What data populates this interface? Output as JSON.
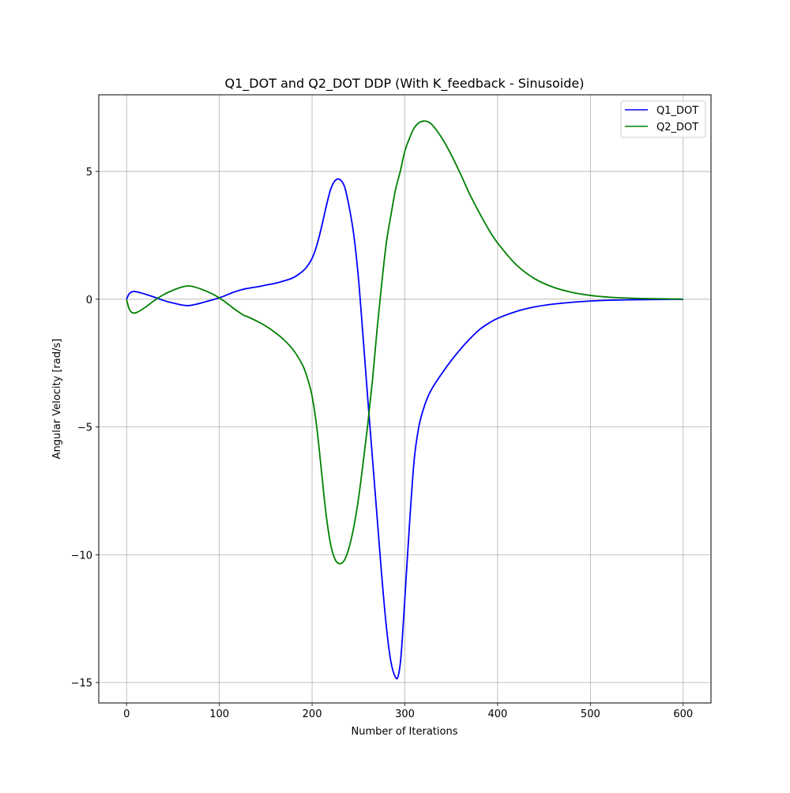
{
  "chart_data": {
    "type": "line",
    "title": "Q1_DOT and Q2_DOT DDP (With K_feedback - Sinusoide)",
    "xlabel": "Number of Iterations",
    "ylabel": "Angular Velocity [rad/s]",
    "xlim": [
      -30,
      630
    ],
    "ylim": [
      -15.8,
      8.0
    ],
    "xticks": [
      0,
      100,
      200,
      300,
      400,
      500,
      600
    ],
    "xtick_labels": [
      "0",
      "100",
      "200",
      "300",
      "400",
      "500",
      "600"
    ],
    "yticks": [
      5,
      0,
      -5,
      -10,
      -15
    ],
    "ytick_labels": [
      "5",
      "0",
      "−5",
      "−10",
      "−15"
    ],
    "grid": true,
    "legend_position": "top-right",
    "series": [
      {
        "name": "Q1_DOT",
        "color": "#0000ff",
        "x": [
          0,
          3,
          7,
          12,
          20,
          30,
          40,
          50,
          60,
          67,
          75,
          85,
          95,
          105,
          115,
          125,
          130,
          140,
          150,
          160,
          170,
          180,
          190,
          195,
          200,
          205,
          210,
          215,
          220,
          225,
          230,
          235,
          240,
          245,
          250,
          255,
          260,
          265,
          270,
          275,
          280,
          285,
          290,
          293,
          296,
          300,
          305,
          310,
          315,
          320,
          325,
          330,
          340,
          350,
          360,
          370,
          380,
          390,
          400,
          420,
          440,
          460,
          480,
          500,
          520,
          540,
          560,
          580,
          600
        ],
        "y": [
          0.0,
          0.22,
          0.3,
          0.28,
          0.2,
          0.08,
          -0.05,
          -0.15,
          -0.23,
          -0.25,
          -0.2,
          -0.1,
          0.0,
          0.12,
          0.27,
          0.38,
          0.42,
          0.48,
          0.55,
          0.62,
          0.72,
          0.85,
          1.1,
          1.3,
          1.6,
          2.1,
          2.8,
          3.6,
          4.3,
          4.65,
          4.68,
          4.4,
          3.6,
          2.5,
          0.8,
          -1.5,
          -3.9,
          -6.2,
          -8.5,
          -10.8,
          -12.8,
          -14.2,
          -14.8,
          -14.72,
          -13.9,
          -11.7,
          -8.8,
          -6.3,
          -5.0,
          -4.3,
          -3.8,
          -3.45,
          -2.9,
          -2.4,
          -1.95,
          -1.55,
          -1.2,
          -0.95,
          -0.75,
          -0.48,
          -0.3,
          -0.19,
          -0.12,
          -0.07,
          -0.04,
          -0.025,
          -0.015,
          -0.008,
          -0.003
        ]
      },
      {
        "name": "Q2_DOT",
        "color": "#008000",
        "x": [
          0,
          3,
          7,
          12,
          20,
          30,
          40,
          50,
          60,
          67,
          75,
          85,
          95,
          105,
          115,
          125,
          130,
          140,
          150,
          160,
          170,
          180,
          190,
          195,
          200,
          205,
          210,
          215,
          220,
          225,
          230,
          235,
          240,
          245,
          250,
          255,
          260,
          265,
          270,
          275,
          280,
          285,
          290,
          295,
          300,
          305,
          310,
          315,
          320,
          325,
          330,
          340,
          350,
          360,
          370,
          380,
          390,
          400,
          420,
          440,
          460,
          480,
          500,
          520,
          540,
          560,
          580,
          600
        ],
        "y": [
          0.0,
          -0.4,
          -0.54,
          -0.5,
          -0.32,
          -0.05,
          0.18,
          0.35,
          0.48,
          0.52,
          0.46,
          0.33,
          0.16,
          -0.07,
          -0.35,
          -0.6,
          -0.68,
          -0.85,
          -1.05,
          -1.3,
          -1.6,
          -2.0,
          -2.6,
          -3.1,
          -3.8,
          -5.0,
          -6.7,
          -8.4,
          -9.6,
          -10.2,
          -10.35,
          -10.2,
          -9.7,
          -8.9,
          -7.8,
          -6.4,
          -4.9,
          -3.2,
          -1.2,
          0.6,
          2.2,
          3.3,
          4.3,
          5.0,
          5.8,
          6.3,
          6.7,
          6.9,
          6.97,
          6.94,
          6.8,
          6.3,
          5.65,
          4.9,
          4.1,
          3.4,
          2.75,
          2.2,
          1.35,
          0.8,
          0.47,
          0.27,
          0.15,
          0.08,
          0.045,
          0.025,
          0.013,
          0.006
        ]
      }
    ]
  }
}
